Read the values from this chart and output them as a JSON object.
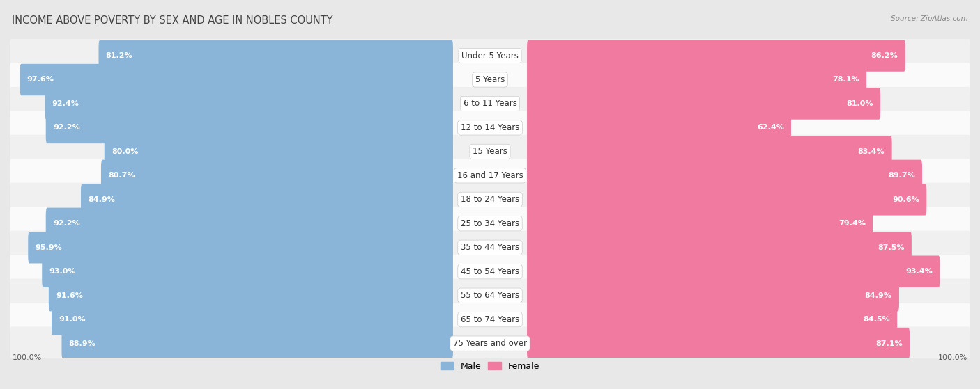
{
  "title": "INCOME ABOVE POVERTY BY SEX AND AGE IN NOBLES COUNTY",
  "source": "Source: ZipAtlas.com",
  "categories": [
    "Under 5 Years",
    "5 Years",
    "6 to 11 Years",
    "12 to 14 Years",
    "15 Years",
    "16 and 17 Years",
    "18 to 24 Years",
    "25 to 34 Years",
    "35 to 44 Years",
    "45 to 54 Years",
    "55 to 64 Years",
    "65 to 74 Years",
    "75 Years and over"
  ],
  "male_values": [
    81.2,
    97.6,
    92.4,
    92.2,
    80.0,
    80.7,
    84.9,
    92.2,
    95.9,
    93.0,
    91.6,
    91.0,
    88.9
  ],
  "female_values": [
    86.2,
    78.1,
    81.0,
    62.4,
    83.4,
    89.7,
    90.6,
    79.4,
    87.5,
    93.4,
    84.9,
    84.5,
    87.1
  ],
  "male_color": "#8ab4d8",
  "female_color": "#f07aa0",
  "male_light_color": "#b8d4ea",
  "female_light_color": "#f8b0c8",
  "bg_color": "#e8e8e8",
  "row_bg_even": "#f0f0f0",
  "row_bg_odd": "#fafafa",
  "max_value": 100.0,
  "label_fontsize": 8.0,
  "cat_fontsize": 8.5,
  "title_fontsize": 10.5,
  "legend_fontsize": 9,
  "axis_label_fontsize": 8.0
}
